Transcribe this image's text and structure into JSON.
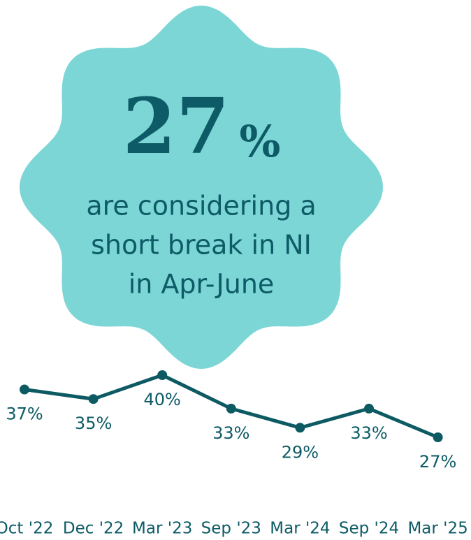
{
  "chart_data": {
    "type": "line",
    "headline": {
      "number": "27",
      "unit": "%"
    },
    "subtitle_lines": [
      "are considering a",
      "short break in NI",
      "in Apr-June"
    ],
    "categories": [
      "Oct '22",
      "Dec '22",
      "Mar '23",
      "Sep '23",
      "Mar '24",
      "Sep '24",
      "Mar '25"
    ],
    "values": [
      37,
      35,
      40,
      33,
      29,
      33,
      27
    ],
    "value_labels": [
      "37%",
      "35%",
      "40%",
      "33%",
      "29%",
      "33%",
      "27%"
    ],
    "color": "#0d5a63",
    "badge_color": "#7dd6d6"
  }
}
